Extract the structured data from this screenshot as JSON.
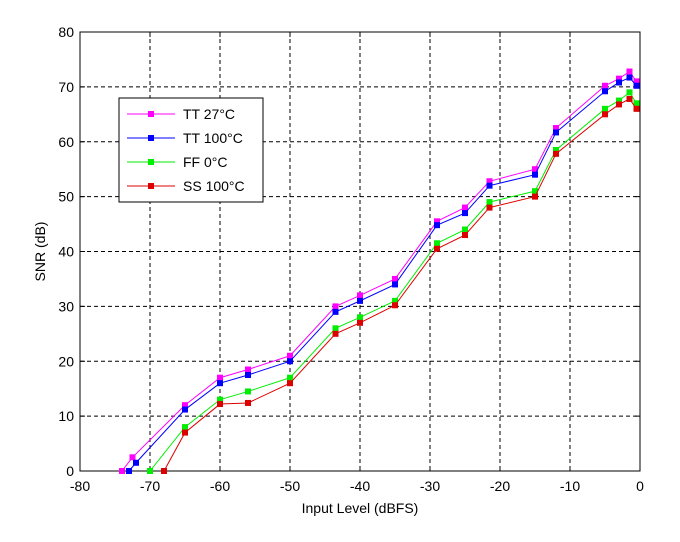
{
  "chart_data": {
    "type": "line",
    "title": "",
    "xlabel": "Input Level (dBFS)",
    "ylabel": "SNR (dB)",
    "xlim": [
      -80,
      0
    ],
    "ylim": [
      0,
      80
    ],
    "xticks": [
      -80,
      -70,
      -60,
      -50,
      -40,
      -30,
      -20,
      -10,
      0
    ],
    "yticks": [
      0,
      10,
      20,
      30,
      40,
      50,
      60,
      70,
      80
    ],
    "xtick_labels": [
      "-80",
      "-70",
      "-60",
      "-50",
      "-40",
      "-30",
      "-20",
      "-10",
      "0"
    ],
    "ytick_labels": [
      "0",
      "10",
      "20",
      "30",
      "40",
      "50",
      "60",
      "70",
      "80"
    ],
    "grid": true,
    "legend_position": "upper-left",
    "series": [
      {
        "name": "TT 27°C",
        "color": "#ff00ff",
        "x": [
          -74,
          -72.5,
          -65,
          -60,
          -56,
          -50,
          -43.5,
          -40,
          -35,
          -29,
          -25,
          -21.5,
          -15,
          -12,
          -5,
          -3,
          -1.5,
          -0.5
        ],
        "y": [
          0,
          2.5,
          12,
          17,
          18.5,
          21,
          30,
          32,
          35,
          45.5,
          48,
          52.8,
          55,
          62.5,
          70.2,
          71.5,
          72.8,
          71
        ]
      },
      {
        "name": "TT 100°C",
        "color": "#0000ff",
        "x": [
          -73,
          -72,
          -65,
          -60,
          -56,
          -50,
          -43.5,
          -40,
          -35,
          -29,
          -25,
          -21.5,
          -15,
          -12,
          -5,
          -3,
          -1.5,
          -0.5
        ],
        "y": [
          0,
          1.5,
          11.2,
          16,
          17.5,
          20,
          29,
          31,
          34,
          44.8,
          47,
          52,
          54,
          61.7,
          69.2,
          70.8,
          71.7,
          70.2
        ]
      },
      {
        "name": "FF 0°C",
        "color": "#00ee00",
        "x": [
          -70,
          -65,
          -60,
          -56,
          -50,
          -43.5,
          -40,
          -35,
          -29,
          -25,
          -21.5,
          -15,
          -12,
          -5,
          -3,
          -1.5,
          -0.5
        ],
        "y": [
          0,
          8,
          13,
          14.5,
          17,
          26,
          28,
          31,
          41.5,
          44,
          49,
          51,
          58.5,
          66,
          67.5,
          69,
          67
        ]
      },
      {
        "name": "SS 100°C",
        "color": "#dd0000",
        "x": [
          -68,
          -65,
          -60,
          -56,
          -50,
          -43.5,
          -40,
          -35,
          -29,
          -25,
          -21.5,
          -15,
          -12,
          -5,
          -3,
          -1.5,
          -0.5
        ],
        "y": [
          0,
          7,
          12.2,
          12.4,
          16,
          25,
          27,
          30.2,
          40.5,
          43,
          48,
          50,
          57.8,
          65,
          66.8,
          67.8,
          66
        ]
      }
    ]
  }
}
